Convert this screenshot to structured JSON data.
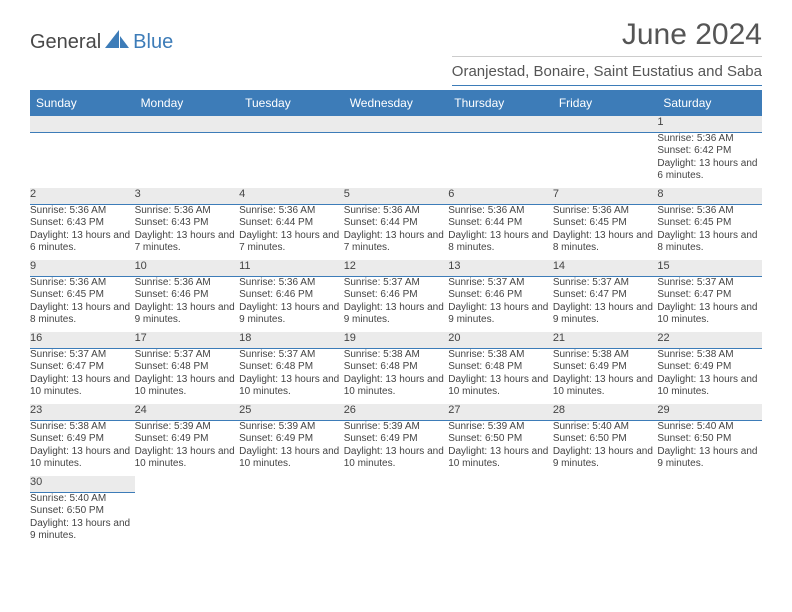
{
  "logo": {
    "general": "General",
    "blue": "Blue"
  },
  "title": "June 2024",
  "subtitle": "Oranjestad, Bonaire, Saint Eustatius and Saba",
  "day_headers": [
    "Sunday",
    "Monday",
    "Tuesday",
    "Wednesday",
    "Thursday",
    "Friday",
    "Saturday"
  ],
  "colors": {
    "header_bg": "#3d7cb8",
    "header_text": "#ffffff",
    "daynum_bg": "#ebebeb",
    "text": "#444444",
    "rule": "#3d7cb8"
  },
  "weeks": [
    [
      null,
      null,
      null,
      null,
      null,
      null,
      {
        "n": "1",
        "sr": "5:36 AM",
        "ss": "6:42 PM",
        "dl": "13 hours and 6 minutes."
      }
    ],
    [
      {
        "n": "2",
        "sr": "5:36 AM",
        "ss": "6:43 PM",
        "dl": "13 hours and 6 minutes."
      },
      {
        "n": "3",
        "sr": "5:36 AM",
        "ss": "6:43 PM",
        "dl": "13 hours and 7 minutes."
      },
      {
        "n": "4",
        "sr": "5:36 AM",
        "ss": "6:44 PM",
        "dl": "13 hours and 7 minutes."
      },
      {
        "n": "5",
        "sr": "5:36 AM",
        "ss": "6:44 PM",
        "dl": "13 hours and 7 minutes."
      },
      {
        "n": "6",
        "sr": "5:36 AM",
        "ss": "6:44 PM",
        "dl": "13 hours and 8 minutes."
      },
      {
        "n": "7",
        "sr": "5:36 AM",
        "ss": "6:45 PM",
        "dl": "13 hours and 8 minutes."
      },
      {
        "n": "8",
        "sr": "5:36 AM",
        "ss": "6:45 PM",
        "dl": "13 hours and 8 minutes."
      }
    ],
    [
      {
        "n": "9",
        "sr": "5:36 AM",
        "ss": "6:45 PM",
        "dl": "13 hours and 8 minutes."
      },
      {
        "n": "10",
        "sr": "5:36 AM",
        "ss": "6:46 PM",
        "dl": "13 hours and 9 minutes."
      },
      {
        "n": "11",
        "sr": "5:36 AM",
        "ss": "6:46 PM",
        "dl": "13 hours and 9 minutes."
      },
      {
        "n": "12",
        "sr": "5:37 AM",
        "ss": "6:46 PM",
        "dl": "13 hours and 9 minutes."
      },
      {
        "n": "13",
        "sr": "5:37 AM",
        "ss": "6:46 PM",
        "dl": "13 hours and 9 minutes."
      },
      {
        "n": "14",
        "sr": "5:37 AM",
        "ss": "6:47 PM",
        "dl": "13 hours and 9 minutes."
      },
      {
        "n": "15",
        "sr": "5:37 AM",
        "ss": "6:47 PM",
        "dl": "13 hours and 10 minutes."
      }
    ],
    [
      {
        "n": "16",
        "sr": "5:37 AM",
        "ss": "6:47 PM",
        "dl": "13 hours and 10 minutes."
      },
      {
        "n": "17",
        "sr": "5:37 AM",
        "ss": "6:48 PM",
        "dl": "13 hours and 10 minutes."
      },
      {
        "n": "18",
        "sr": "5:37 AM",
        "ss": "6:48 PM",
        "dl": "13 hours and 10 minutes."
      },
      {
        "n": "19",
        "sr": "5:38 AM",
        "ss": "6:48 PM",
        "dl": "13 hours and 10 minutes."
      },
      {
        "n": "20",
        "sr": "5:38 AM",
        "ss": "6:48 PM",
        "dl": "13 hours and 10 minutes."
      },
      {
        "n": "21",
        "sr": "5:38 AM",
        "ss": "6:49 PM",
        "dl": "13 hours and 10 minutes."
      },
      {
        "n": "22",
        "sr": "5:38 AM",
        "ss": "6:49 PM",
        "dl": "13 hours and 10 minutes."
      }
    ],
    [
      {
        "n": "23",
        "sr": "5:38 AM",
        "ss": "6:49 PM",
        "dl": "13 hours and 10 minutes."
      },
      {
        "n": "24",
        "sr": "5:39 AM",
        "ss": "6:49 PM",
        "dl": "13 hours and 10 minutes."
      },
      {
        "n": "25",
        "sr": "5:39 AM",
        "ss": "6:49 PM",
        "dl": "13 hours and 10 minutes."
      },
      {
        "n": "26",
        "sr": "5:39 AM",
        "ss": "6:49 PM",
        "dl": "13 hours and 10 minutes."
      },
      {
        "n": "27",
        "sr": "5:39 AM",
        "ss": "6:50 PM",
        "dl": "13 hours and 10 minutes."
      },
      {
        "n": "28",
        "sr": "5:40 AM",
        "ss": "6:50 PM",
        "dl": "13 hours and 9 minutes."
      },
      {
        "n": "29",
        "sr": "5:40 AM",
        "ss": "6:50 PM",
        "dl": "13 hours and 9 minutes."
      }
    ],
    [
      {
        "n": "30",
        "sr": "5:40 AM",
        "ss": "6:50 PM",
        "dl": "13 hours and 9 minutes."
      },
      null,
      null,
      null,
      null,
      null,
      null
    ]
  ],
  "labels": {
    "sunrise_prefix": "Sunrise: ",
    "sunset_prefix": "Sunset: ",
    "daylight_prefix": "Daylight: "
  }
}
